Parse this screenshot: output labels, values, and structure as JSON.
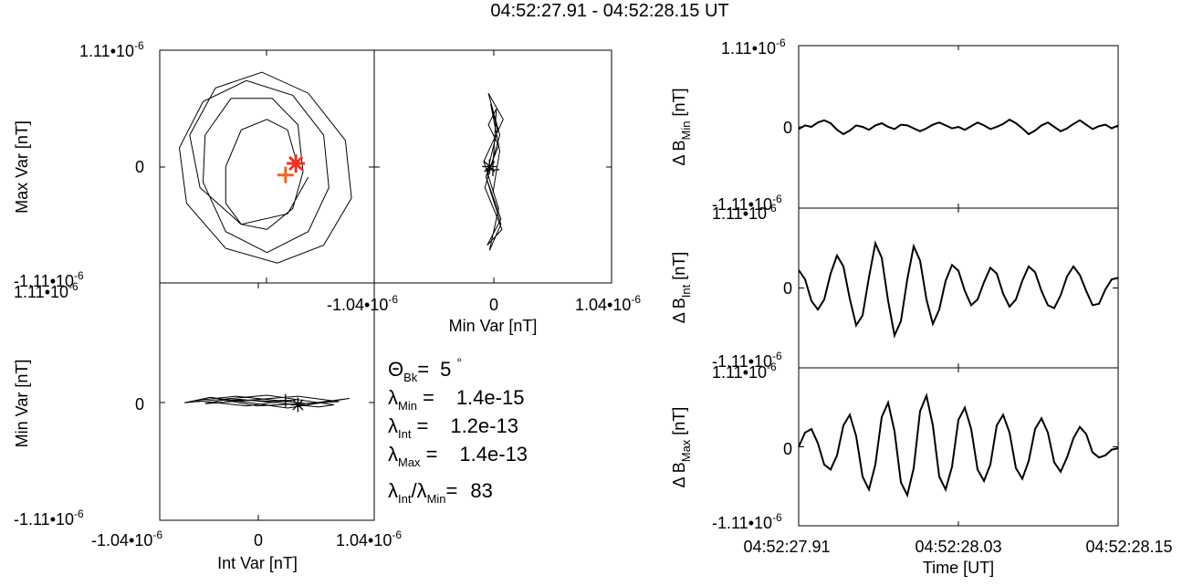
{
  "figure": {
    "title": "04:52:27.91 - 04:52:28.15 UT"
  },
  "tick_labels": {
    "b_max": "1.11•",
    "b_min": "-1.11•",
    "i_max": "1.04•",
    "i_min": "-1.04•",
    "exp": "10",
    "exp_sup": "-6",
    "zero": "0"
  },
  "hodogram_max_int": {
    "ylabel": "Max Var [nT]"
  },
  "hodogram_max_min": {
    "xlabel": "Min Var [nT]"
  },
  "hodogram_min_int": {
    "ylabel": "Min Var [nT]",
    "xlabel": "Int Var [nT]"
  },
  "parameters": {
    "theta": {
      "sym": "Θ",
      "sub": "Bk",
      "eq": "=",
      "value": "5",
      "unit": "°"
    },
    "lambda_min": {
      "sym": "λ",
      "sub": "Min",
      "eq": "=",
      "value": "1.4e-15"
    },
    "lambda_int": {
      "sym": "λ",
      "sub": "Int",
      "eq": "=",
      "value": "1.2e-13"
    },
    "lambda_max": {
      "sym": "λ",
      "sub": "Max",
      "eq": "=",
      "value": "1.4e-13"
    },
    "ratio": {
      "sym": "λ",
      "sub": "Int",
      "slash": "/",
      "sym2": "λ",
      "sub2": "Min",
      "eq": "=",
      "value": "83"
    }
  },
  "timeseries": {
    "xlabel": "Time [UT]",
    "time_ticks": [
      "04:52:27.91",
      "04:52:28.03",
      "04:52:28.15"
    ],
    "panels": [
      {
        "label_prefix": "Δ B",
        "label_sub": "Min",
        "label_suffix": " [nT]"
      },
      {
        "label_prefix": "Δ B",
        "label_sub": "Int",
        "label_suffix": " [nT]"
      },
      {
        "label_prefix": "Δ B",
        "label_sub": "Max",
        "label_suffix": " [nT]"
      }
    ]
  },
  "chart_data": [
    {
      "type": "line",
      "title": "04:52:27.91 - 04:52:28.15 UT",
      "xlabel": "Int Var [nT]",
      "ylabel": "Max Var [nT]",
      "xlim": [
        -1.04e-06,
        1.04e-06
      ],
      "ylim": [
        -1.11e-06,
        1.11e-06
      ],
      "series": [
        {
          "x": [
            3e-07,
            2e-07,
            0.0,
            -2.5e-07,
            -4e-07,
            -4e-07,
            -2.5e-07,
            0.0,
            2.5e-07,
            3.5e-07,
            3e-07,
            5e-08,
            -3.5e-07,
            -6e-07,
            -6.2e-07,
            -4e-07,
            0.0,
            4e-07,
            6e-07,
            5.5e-07,
            2.5e-07,
            -2e-07,
            -6.2e-07,
            -8.5e-07,
            -7.8e-07,
            -4e-07,
            1e-07,
            5.5e-07,
            8.2e-07,
            7.6e-07,
            4e-07,
            -5e-08,
            -5e-07,
            -7.5e-07,
            -6.5e-07,
            -2.5e-07,
            2e-07,
            4e-07
          ],
          "y": [
            0.0,
            3.5e-07,
            4.5e-07,
            3.5e-07,
            0.0,
            -3.5e-07,
            -5.5e-07,
            -6e-07,
            -4e-07,
            -5e-08,
            4e-07,
            6.5e-07,
            6.5e-07,
            3e-07,
            -1.5e-07,
            -6.2e-07,
            -8.2e-07,
            -6.2e-07,
            -2e-07,
            3e-07,
            6.8e-07,
            8.2e-07,
            6.2e-07,
            1.8e-07,
            -3.5e-07,
            -7.8e-07,
            -9.2e-07,
            -7.5e-07,
            -3e-07,
            2.5e-07,
            7e-07,
            9e-07,
            7.5e-07,
            3e-07,
            -2e-07,
            -5.5e-07,
            -4.5e-07,
            -1e-07
          ]
        }
      ],
      "markers": [
        {
          "symbol": "asterisk",
          "x": 2.8e-07,
          "y": 3e-08,
          "color": "#ee3322"
        },
        {
          "symbol": "plus",
          "x": 1.8e-07,
          "y": -8e-08,
          "color": "#ee6622"
        }
      ]
    },
    {
      "type": "line",
      "xlabel": "Min Var [nT]",
      "xlim": [
        -1.04e-06,
        1.04e-06
      ],
      "ylim": [
        -1.11e-06,
        1.11e-06
      ],
      "series": [
        {
          "x": [
            0.0,
            3e-08,
            -4e-08,
            5e-08,
            -6e-08,
            7e-08,
            -5e-08,
            8e-08,
            -7e-08,
            6e-08,
            -4e-08,
            9e-08,
            -8e-08,
            5e-08,
            -3e-08,
            7e-08,
            -6e-08,
            4e-08,
            -2e-08,
            6e-08,
            0.0
          ],
          "y": [
            0.0,
            5.5e-07,
            4e-07,
            2e-07,
            -1e-07,
            -5e-07,
            -7.5e-07,
            -6e-07,
            -2e-07,
            3e-07,
            7e-07,
            4.5e-07,
            5e-08,
            -4e-07,
            -8e-07,
            -5.5e-07,
            -1e-07,
            3.5e-07,
            6e-07,
            1.5e-07,
            -2.5e-07
          ]
        }
      ],
      "markers": [
        {
          "symbol": "asterisk",
          "x": -3e-08,
          "y": 0.0,
          "color": "#000000"
        },
        {
          "symbol": "plus",
          "x": 0.0,
          "y": -3e-08,
          "color": "#000000"
        }
      ]
    },
    {
      "type": "line",
      "xlabel": "Int Var [nT]",
      "ylabel": "Min Var [nT]",
      "xlim": [
        -1.04e-06,
        1.04e-06
      ],
      "ylim": [
        -1.11e-06,
        1.11e-06
      ],
      "series": [
        {
          "x": [
            3e-07,
            -2e-07,
            -7e-07,
            -3e-07,
            4e-07,
            8e-07,
            2e-07,
            -5.5e-07,
            -8e-07,
            0.0,
            6.5e-07,
            5e-07,
            -3.5e-07,
            -6e-07,
            3e-07,
            7e-07,
            -1e-07,
            -4.5e-07,
            2e-07
          ],
          "y": [
            2e-08,
            -4e-08,
            1e-08,
            5e-08,
            -2e-08,
            3e-08,
            -6e-08,
            4e-08,
            -1e-08,
            6e-08,
            -3e-08,
            -5e-08,
            3e-08,
            -2e-08,
            5e-08,
            0.0,
            -4e-08,
            2e-08,
            0.0
          ]
        }
      ],
      "markers": [
        {
          "symbol": "asterisk",
          "x": 3e-07,
          "y": -3e-08,
          "color": "#000000"
        },
        {
          "symbol": "plus",
          "x": 1.8e-07,
          "y": 1e-08,
          "color": "#000000"
        }
      ]
    },
    {
      "type": "line",
      "ylabel": "Δ B Min [nT]",
      "xlim": [
        0,
        1
      ],
      "ylim": [
        -1.11e-06,
        1.11e-06
      ],
      "series": [
        {
          "x": [
            0.0,
            0.02,
            0.04,
            0.06,
            0.08,
            0.1,
            0.12,
            0.14,
            0.16,
            0.18,
            0.2,
            0.22,
            0.24,
            0.26,
            0.28,
            0.3,
            0.32,
            0.34,
            0.36,
            0.38,
            0.4,
            0.42,
            0.44,
            0.46,
            0.48,
            0.5,
            0.52,
            0.54,
            0.56,
            0.58,
            0.6,
            0.62,
            0.64,
            0.66,
            0.68,
            0.7,
            0.72,
            0.74,
            0.76,
            0.78,
            0.8,
            0.82,
            0.84,
            0.86,
            0.88,
            0.9,
            0.92,
            0.94,
            0.96,
            0.98,
            1.0
          ],
          "y": [
            -3e-08,
            2e-08,
            0.0,
            6e-08,
            9e-08,
            5e-08,
            -4e-08,
            -1e-07,
            -5e-08,
            2e-08,
            0.0,
            -4e-08,
            2e-08,
            5e-08,
            0.0,
            -3e-08,
            3e-08,
            2e-08,
            -2e-08,
            -6e-08,
            -2e-08,
            3e-08,
            6e-08,
            2e-08,
            -2e-08,
            0.0,
            -4e-08,
            1e-08,
            6e-08,
            2e-08,
            -3e-08,
            0.0,
            4e-08,
            1e-07,
            5e-08,
            -2e-08,
            -1e-07,
            -5e-08,
            2e-08,
            6e-08,
            0.0,
            -6e-08,
            -2e-08,
            4e-08,
            9e-08,
            3e-08,
            -3e-08,
            1e-08,
            3e-08,
            -2e-08,
            2e-08
          ]
        }
      ]
    },
    {
      "type": "line",
      "ylabel": "Δ B Int [nT]",
      "xlabel": "",
      "xlim": [
        0,
        1
      ],
      "ylim": [
        -1.11e-06,
        1.11e-06
      ],
      "series": [
        {
          "x": [
            0.0,
            0.02,
            0.04,
            0.06,
            0.08,
            0.1,
            0.12,
            0.14,
            0.16,
            0.18,
            0.2,
            0.22,
            0.24,
            0.26,
            0.28,
            0.3,
            0.32,
            0.34,
            0.36,
            0.38,
            0.4,
            0.42,
            0.44,
            0.46,
            0.48,
            0.5,
            0.52,
            0.54,
            0.56,
            0.58,
            0.6,
            0.62,
            0.64,
            0.66,
            0.68,
            0.7,
            0.72,
            0.74,
            0.76,
            0.78,
            0.8,
            0.82,
            0.84,
            0.86,
            0.88,
            0.9,
            0.92,
            0.94,
            0.96,
            0.98,
            1.0
          ],
          "y": [
            2.5e-07,
            1.2e-07,
            -1.8e-07,
            -3e-07,
            -1.6e-07,
            2e-07,
            4.5e-07,
            3e-07,
            -1.5e-07,
            -5.2e-07,
            -3.8e-07,
            1.5e-07,
            6.2e-07,
            4.2e-07,
            -1.8e-07,
            -6.6e-07,
            -4.6e-07,
            1.2e-07,
            5.8e-07,
            3.8e-07,
            -1.6e-07,
            -5e-07,
            -3e-07,
            1e-07,
            3.2e-07,
            2.4e-07,
            -4e-08,
            -2.4e-07,
            -1.6e-07,
            8e-08,
            2.8e-07,
            2e-07,
            -8e-08,
            -2.6e-07,
            -1.6e-07,
            1e-07,
            3e-07,
            2.2e-07,
            -4e-08,
            -2.4e-07,
            -2.8e-07,
            -1e-07,
            1.6e-07,
            3e-07,
            1.8e-07,
            -4e-08,
            -2.4e-07,
            -2.2e-07,
            -2e-08,
            1.2e-07,
            1.4e-07
          ]
        }
      ]
    },
    {
      "type": "line",
      "xlabel": "Time [UT]",
      "ylabel": "Δ B Max [nT]",
      "xlim": [
        0,
        1
      ],
      "ylim": [
        -1.11e-06,
        1.11e-06
      ],
      "series": [
        {
          "x": [
            0.0,
            0.02,
            0.04,
            0.06,
            0.08,
            0.1,
            0.12,
            0.14,
            0.16,
            0.18,
            0.2,
            0.22,
            0.24,
            0.26,
            0.28,
            0.3,
            0.32,
            0.34,
            0.36,
            0.38,
            0.4,
            0.42,
            0.44,
            0.46,
            0.48,
            0.5,
            0.52,
            0.54,
            0.56,
            0.58,
            0.6,
            0.62,
            0.64,
            0.66,
            0.68,
            0.7,
            0.72,
            0.74,
            0.76,
            0.78,
            0.8,
            0.82,
            0.84,
            0.86,
            0.88,
            0.9,
            0.92,
            0.94,
            0.96,
            0.98,
            1.0
          ],
          "y": [
            0.0,
            2e-07,
            2.5e-07,
            5e-08,
            -2.5e-07,
            -3.2e-07,
            -1.2e-07,
            3e-07,
            4.5e-07,
            1.5e-07,
            -4.2e-07,
            -6e-07,
            -2.5e-07,
            4.2e-07,
            6.2e-07,
            2.2e-07,
            -5e-07,
            -6.8e-07,
            -3e-07,
            5e-07,
            7.2e-07,
            3e-07,
            -4.2e-07,
            -6e-07,
            -2.8e-07,
            3.8e-07,
            5.5e-07,
            2.5e-07,
            -3.2e-07,
            -4.8e-07,
            -2.5e-07,
            3e-07,
            4.5e-07,
            2e-07,
            -3e-07,
            -4.5e-07,
            -2e-07,
            2.5e-07,
            4e-07,
            2e-07,
            -2.2e-07,
            -3.5e-07,
            -1.5e-07,
            1.2e-07,
            2.8e-07,
            1.8e-07,
            -8e-08,
            -1.5e-07,
            -1.2e-07,
            -4e-08,
            -2e-08
          ]
        }
      ]
    }
  ]
}
